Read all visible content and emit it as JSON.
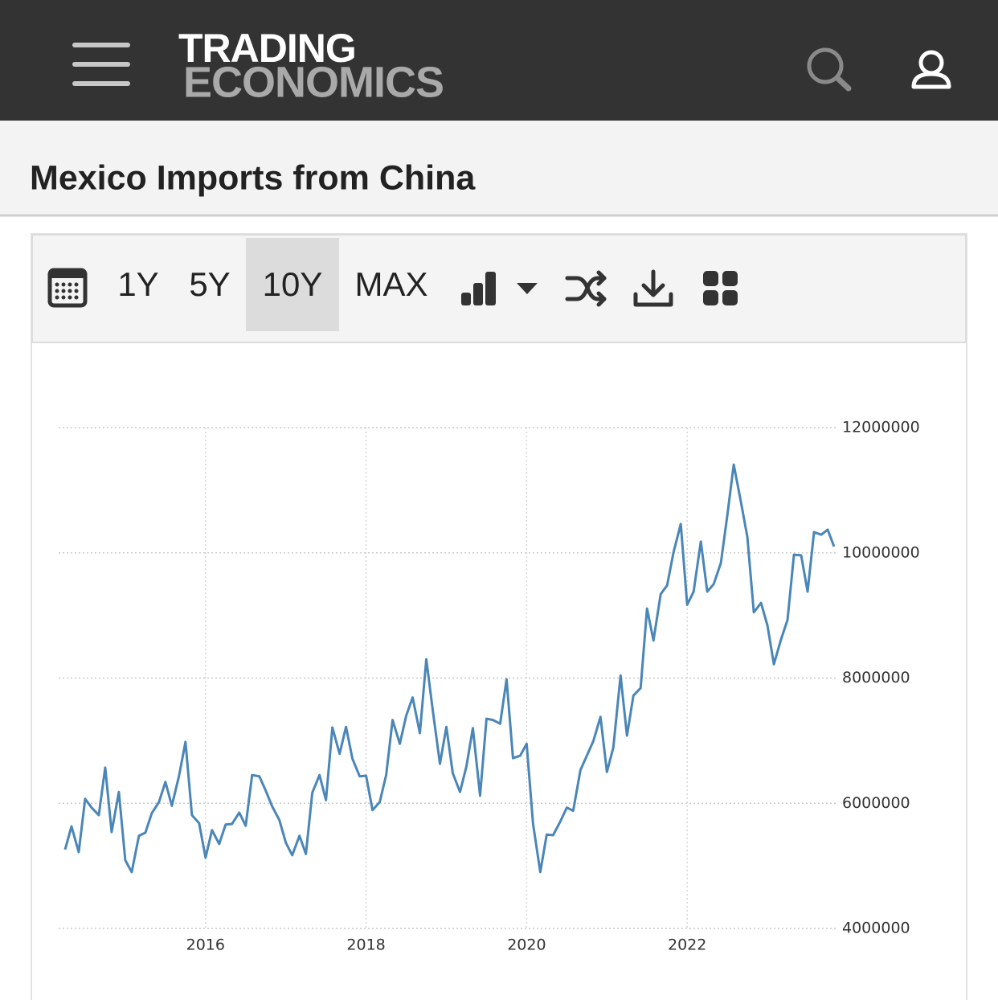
{
  "header": {
    "logo_top": "TRADING",
    "logo_bottom": "ECONOMICS"
  },
  "page_title": "Mexico Imports from China",
  "toolbar": {
    "ranges": [
      "1Y",
      "5Y",
      "10Y",
      "MAX"
    ]
  },
  "chart_data": {
    "type": "line",
    "color": "#4a86b8",
    "grid": true,
    "x": [
      2014.25,
      2014.33,
      2014.42,
      2014.5,
      2014.58,
      2014.67,
      2014.75,
      2014.83,
      2014.92,
      2015,
      2015.08,
      2015.17,
      2015.25,
      2015.33,
      2015.42,
      2015.5,
      2015.58,
      2015.67,
      2015.75,
      2015.83,
      2015.92,
      2016,
      2016.08,
      2016.17,
      2016.25,
      2016.33,
      2016.42,
      2016.5,
      2016.58,
      2016.67,
      2016.75,
      2016.83,
      2016.92,
      2017,
      2017.08,
      2017.17,
      2017.25,
      2017.33,
      2017.42,
      2017.5,
      2017.58,
      2017.67,
      2017.75,
      2017.83,
      2017.92,
      2018,
      2018.08,
      2018.17,
      2018.25,
      2018.33,
      2018.42,
      2018.5,
      2018.58,
      2018.67,
      2018.75,
      2018.83,
      2018.92,
      2019,
      2019.08,
      2019.17,
      2019.25,
      2019.33,
      2019.42,
      2019.5,
      2019.58,
      2019.67,
      2019.75,
      2019.83,
      2019.92,
      2020,
      2020.08,
      2020.17,
      2020.25,
      2020.33,
      2020.42,
      2020.5,
      2020.58,
      2020.67,
      2020.75,
      2020.83,
      2020.92,
      2021,
      2021.08,
      2021.17,
      2021.25,
      2021.33,
      2021.42,
      2021.5,
      2021.58,
      2021.67,
      2021.75,
      2021.83,
      2021.92,
      2022,
      2022.08,
      2022.17,
      2022.25,
      2022.33,
      2022.42,
      2022.5,
      2022.58,
      2022.67,
      2022.75,
      2022.83,
      2022.92,
      2023,
      2023.08,
      2023.17,
      2023.25,
      2023.33,
      2023.42,
      2023.5,
      2023.58,
      2023.67,
      2023.75,
      2023.83
    ],
    "values": [
      5260000,
      5630000,
      5220000,
      6070000,
      5930000,
      5810000,
      6570000,
      5540000,
      6180000,
      5090000,
      4900000,
      5480000,
      5530000,
      5840000,
      6020000,
      6340000,
      5960000,
      6440000,
      6980000,
      5810000,
      5680000,
      5130000,
      5570000,
      5350000,
      5660000,
      5670000,
      5850000,
      5640000,
      6450000,
      6430000,
      6200000,
      5950000,
      5730000,
      5370000,
      5170000,
      5480000,
      5190000,
      6170000,
      6450000,
      6050000,
      7210000,
      6790000,
      7220000,
      6710000,
      6430000,
      6440000,
      5890000,
      6020000,
      6450000,
      7330000,
      6950000,
      7400000,
      7690000,
      7120000,
      8300000,
      7490000,
      6630000,
      7220000,
      6480000,
      6180000,
      6590000,
      7200000,
      6120000,
      7350000,
      7330000,
      7270000,
      7980000,
      6720000,
      6760000,
      6950000,
      5670000,
      4900000,
      5500000,
      5490000,
      5710000,
      5930000,
      5880000,
      6530000,
      6760000,
      6990000,
      7380000,
      6500000,
      6890000,
      8040000,
      7080000,
      7720000,
      7840000,
      9110000,
      8600000,
      9340000,
      9480000,
      10010000,
      10460000,
      9170000,
      9380000,
      10180000,
      9380000,
      9500000,
      9840000,
      10600000,
      11410000,
      10810000,
      10250000,
      9050000,
      9200000,
      8840000,
      8220000,
      8620000,
      8930000,
      9970000,
      9960000,
      9380000,
      10330000,
      10290000,
      10370000,
      10100000
    ],
    "xlim": [
      2014.17,
      2023.85
    ],
    "xticks": [
      2016,
      2018,
      2020,
      2022
    ],
    "ylim": [
      4000000,
      12000000
    ],
    "yticks": [
      4000000,
      6000000,
      8000000,
      10000000,
      12000000
    ]
  }
}
